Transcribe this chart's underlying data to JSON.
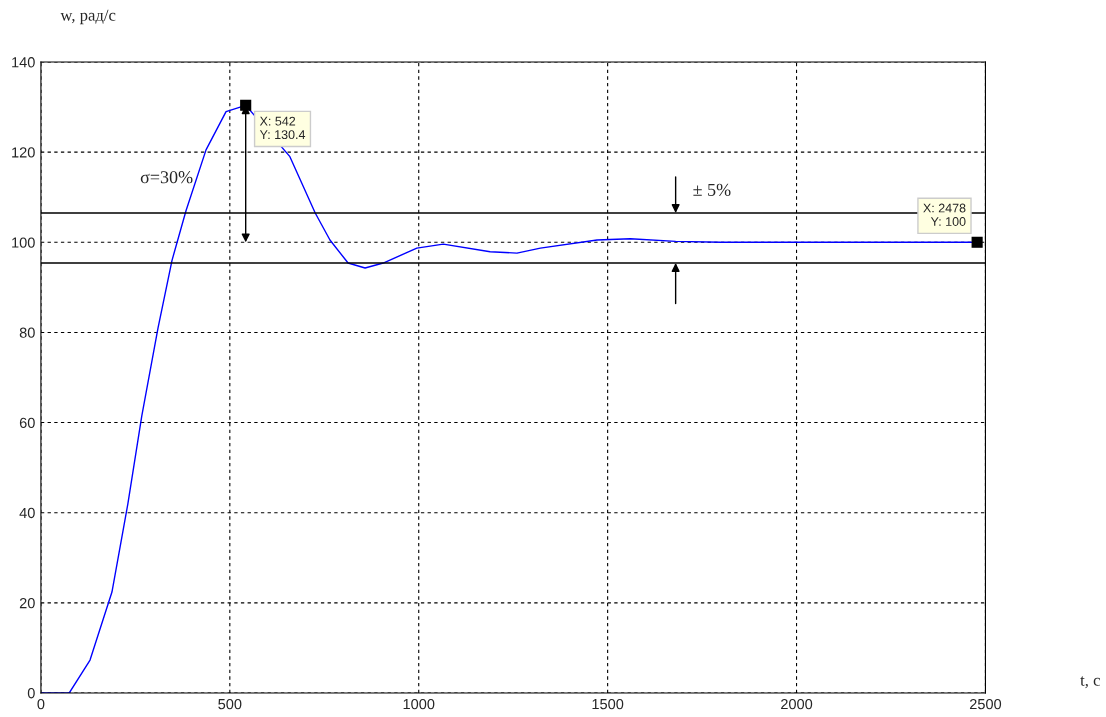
{
  "chart_data": {
    "type": "line",
    "xlabel": "t, с",
    "ylabel": "w, рад/с",
    "x": [
      0,
      75,
      130,
      188,
      230,
      267,
      310,
      347,
      384,
      437,
      490,
      542,
      659,
      726,
      765,
      813,
      858,
      906,
      995,
      1065,
      1189,
      1260,
      1322,
      1472,
      1560,
      1680,
      1800,
      2478
    ],
    "series": [
      {
        "color": "#0000ff",
        "values": [
          0,
          0,
          7.3,
          22.4,
          41.9,
          61.5,
          81,
          96,
          107,
          120.5,
          129,
          130.4,
          119,
          106.5,
          100.5,
          95.4,
          94.3,
          95.4,
          98.7,
          99.6,
          97.9,
          97.6,
          98.7,
          100.5,
          100.8,
          100.2,
          100,
          100
        ]
      }
    ],
    "xlim": [
      0,
      2500
    ],
    "xticks": [
      0,
      500,
      1000,
      1500,
      2000,
      2500
    ],
    "ylim": [
      0,
      140
    ],
    "yticks": [
      0,
      20,
      40,
      60,
      80,
      100,
      120,
      140
    ],
    "grid": true,
    "line_style": "solid",
    "ref_lines": [
      {
        "axis": "y",
        "value": 106.5,
        "color": "#000000"
      },
      {
        "axis": "y",
        "value": 95.4,
        "color": "#000000"
      }
    ],
    "annotations": [
      {
        "text": "X: 542\nY: 130.4",
        "x": 542,
        "y": 130.4
      },
      {
        "text": "X: 2478\nY: 100",
        "x": 2478,
        "y": 100
      },
      "σ=30%",
      "± 5%"
    ]
  }
}
